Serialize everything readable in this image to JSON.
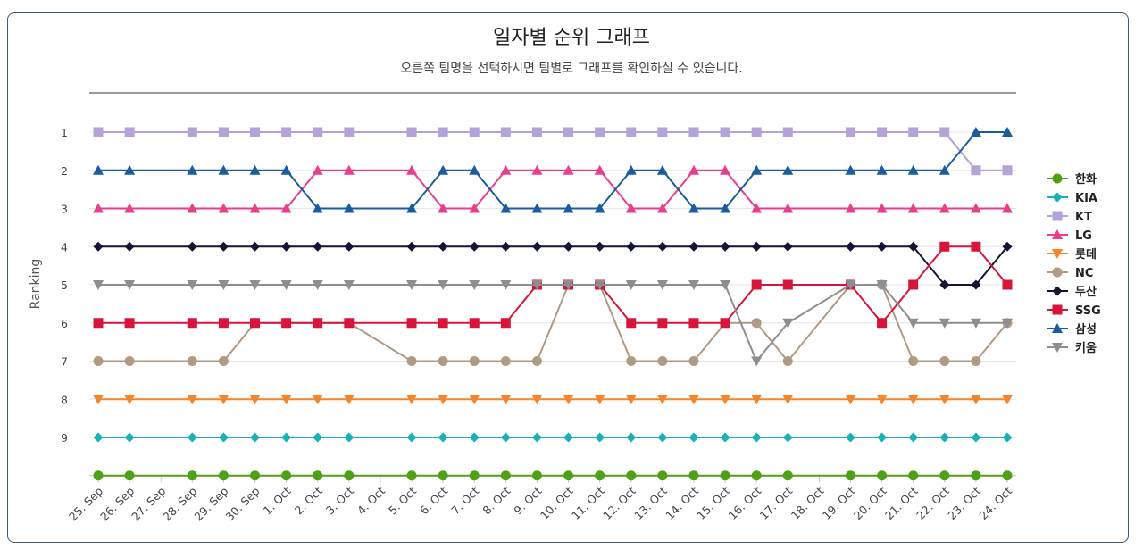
{
  "chart_data": {
    "type": "line",
    "title": "일자별 순위 그래프",
    "subtitle": "오른쪽 팀명을 선택하시면 팀별로 그래프를 확인하실 수 있습니다.",
    "ylabel": "Ranking",
    "xlabel": "",
    "y_ticks": [
      "1",
      "2",
      "3",
      "4",
      "5",
      "6",
      "7",
      "8",
      "9"
    ],
    "ylim": [
      1,
      10
    ],
    "y_reversed": true,
    "x_categories": [
      "25. Sep",
      "26. Sep",
      "27. Sep",
      "28. Sep",
      "29. Sep",
      "30. Sep",
      "1. Oct",
      "2. Oct",
      "3. Oct",
      "4. Oct",
      "5. Oct",
      "6. Oct",
      "7. Oct",
      "8. Oct",
      "9. Oct",
      "10. Oct",
      "11. Oct",
      "12. Oct",
      "13. Oct",
      "14. Oct",
      "15. Oct",
      "16. Oct",
      "17. Oct",
      "18. Oct",
      "19. Oct",
      "20. Oct",
      "21. Oct",
      "22. Oct",
      "23. Oct",
      "24. Oct"
    ],
    "legend_position": "right",
    "series": [
      {
        "name": "한화",
        "color": "#4ea114",
        "marker": "circle",
        "values": [
          10,
          10,
          null,
          10,
          10,
          10,
          10,
          10,
          10,
          null,
          10,
          10,
          10,
          10,
          10,
          10,
          10,
          10,
          10,
          10,
          10,
          10,
          10,
          null,
          10,
          10,
          10,
          10,
          10,
          10
        ]
      },
      {
        "name": "KIA",
        "color": "#1ab0b8",
        "marker": "diamond",
        "values": [
          9,
          9,
          null,
          9,
          9,
          9,
          9,
          9,
          9,
          null,
          9,
          9,
          9,
          9,
          9,
          9,
          9,
          9,
          9,
          9,
          9,
          9,
          9,
          null,
          9,
          9,
          9,
          9,
          9,
          9
        ]
      },
      {
        "name": "KT",
        "color": "#b3a3d6",
        "marker": "square",
        "values": [
          1,
          1,
          null,
          1,
          1,
          1,
          1,
          1,
          1,
          null,
          1,
          1,
          1,
          1,
          1,
          1,
          1,
          1,
          1,
          1,
          1,
          1,
          1,
          null,
          1,
          1,
          1,
          1,
          2,
          2
        ]
      },
      {
        "name": "LG",
        "color": "#e83e8c",
        "marker": "triangle",
        "values": [
          3,
          3,
          null,
          3,
          3,
          3,
          3,
          2,
          2,
          null,
          2,
          3,
          3,
          2,
          2,
          2,
          2,
          3,
          3,
          2,
          2,
          3,
          3,
          null,
          3,
          3,
          3,
          3,
          3,
          3
        ]
      },
      {
        "name": "롯데",
        "color": "#f5842a",
        "marker": "triangle-down",
        "values": [
          8,
          8,
          null,
          8,
          8,
          8,
          8,
          8,
          8,
          null,
          8,
          8,
          8,
          8,
          8,
          8,
          8,
          8,
          8,
          8,
          8,
          8,
          8,
          null,
          8,
          8,
          8,
          8,
          8,
          8
        ]
      },
      {
        "name": "NC",
        "color": "#b09a83",
        "marker": "circle",
        "values": [
          7,
          7,
          null,
          7,
          7,
          6,
          6,
          6,
          6,
          null,
          7,
          7,
          7,
          7,
          7,
          5,
          5,
          7,
          7,
          7,
          6,
          6,
          7,
          null,
          5,
          5,
          7,
          7,
          7,
          6
        ]
      },
      {
        "name": "두산",
        "color": "#131533",
        "marker": "diamond",
        "values": [
          4,
          4,
          null,
          4,
          4,
          4,
          4,
          4,
          4,
          null,
          4,
          4,
          4,
          4,
          4,
          4,
          4,
          4,
          4,
          4,
          4,
          4,
          4,
          null,
          4,
          4,
          4,
          5,
          5,
          4
        ]
      },
      {
        "name": "SSG",
        "color": "#d7153a",
        "marker": "square",
        "values": [
          6,
          6,
          null,
          6,
          6,
          6,
          6,
          6,
          6,
          null,
          6,
          6,
          6,
          6,
          5,
          5,
          5,
          6,
          6,
          6,
          6,
          5,
          5,
          null,
          5,
          6,
          5,
          4,
          4,
          5
        ]
      },
      {
        "name": "삼성",
        "color": "#1a5ca0",
        "marker": "triangle",
        "values": [
          2,
          2,
          null,
          2,
          2,
          2,
          2,
          3,
          3,
          null,
          3,
          2,
          2,
          3,
          3,
          3,
          3,
          2,
          2,
          3,
          3,
          2,
          2,
          null,
          2,
          2,
          2,
          2,
          1,
          1
        ]
      },
      {
        "name": "키움",
        "color": "#8e8e8e",
        "marker": "triangle-down",
        "values": [
          5,
          5,
          null,
          5,
          5,
          5,
          5,
          5,
          5,
          null,
          5,
          5,
          5,
          5,
          5,
          5,
          5,
          5,
          5,
          5,
          5,
          7,
          6,
          null,
          5,
          5,
          6,
          6,
          6,
          6
        ]
      }
    ]
  }
}
